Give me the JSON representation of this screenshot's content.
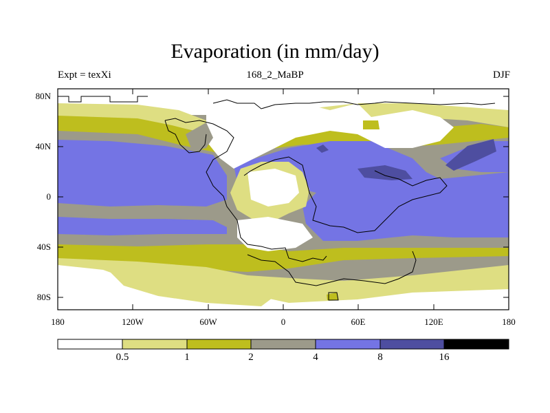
{
  "title": "Evaporation (in mm/day)",
  "left_string": "Expt = texXi",
  "center_string": "168_2_MaBP",
  "right_string": "DJF",
  "lat_labels": [
    "80N",
    "40N",
    "0",
    "40S",
    "80S"
  ],
  "lon_labels": [
    "180",
    "120W",
    "60W",
    "0",
    "60E",
    "120E",
    "180"
  ],
  "colorbar": {
    "levels": [
      "0.5",
      "1",
      "2",
      "4",
      "8",
      "16"
    ],
    "colors": [
      "#ffffff",
      "#dede82",
      "#bebe1e",
      "#9c9a8a",
      "#7474e4",
      "#4e4ea0",
      "#000000"
    ]
  },
  "colors": {
    "ocean_gray": "#9c9a8a",
    "blue": "#7474e4",
    "dark_blue": "#4e4ea0",
    "olive": "#bebe1e",
    "light_yellow": "#dede82",
    "white": "#ffffff",
    "coast": "#000000"
  }
}
